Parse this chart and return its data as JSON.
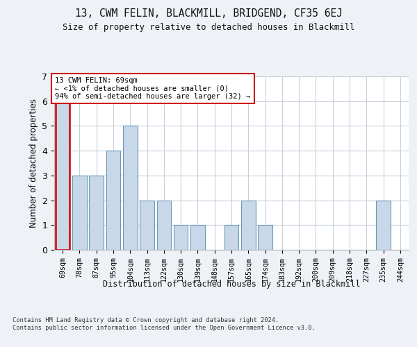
{
  "title": "13, CWM FELIN, BLACKMILL, BRIDGEND, CF35 6EJ",
  "subtitle": "Size of property relative to detached houses in Blackmill",
  "xlabel": "Distribution of detached houses by size in Blackmill",
  "ylabel": "Number of detached properties",
  "categories": [
    "69sqm",
    "78sqm",
    "87sqm",
    "95sqm",
    "104sqm",
    "113sqm",
    "122sqm",
    "130sqm",
    "139sqm",
    "148sqm",
    "157sqm",
    "165sqm",
    "174sqm",
    "183sqm",
    "192sqm",
    "200sqm",
    "209sqm",
    "218sqm",
    "227sqm",
    "235sqm",
    "244sqm"
  ],
  "values": [
    6,
    3,
    3,
    4,
    5,
    2,
    2,
    1,
    1,
    0,
    1,
    2,
    1,
    0,
    0,
    0,
    0,
    0,
    0,
    2,
    0
  ],
  "bar_color": "#c8d8e8",
  "bar_edge_color": "#6699bb",
  "highlight_index": 0,
  "highlight_edge_color": "#cc0000",
  "ylim": [
    0,
    7
  ],
  "yticks": [
    0,
    1,
    2,
    3,
    4,
    5,
    6,
    7
  ],
  "annotation_text": "13 CWM FELIN: 69sqm\n← <1% of detached houses are smaller (0)\n94% of semi-detached houses are larger (32) →",
  "annotation_box_color": "#ffffff",
  "annotation_box_edge_color": "#cc0000",
  "footer_text": "Contains HM Land Registry data © Crown copyright and database right 2024.\nContains public sector information licensed under the Open Government Licence v3.0.",
  "background_color": "#eef2f7",
  "plot_background_color": "#ffffff",
  "grid_color": "#c8d0dc"
}
